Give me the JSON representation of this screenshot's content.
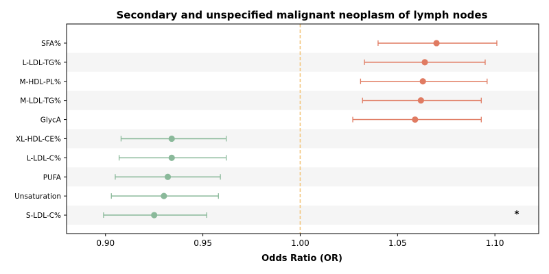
{
  "chart_data": {
    "type": "forest",
    "title": "Secondary and unspecified malignant neoplasm of lymph nodes",
    "xlabel": "Odds Ratio (OR)",
    "xlim": [
      0.88,
      1.1225
    ],
    "xticks": [
      0.9,
      0.95,
      1.0,
      1.05,
      1.1
    ],
    "xtick_labels": [
      "0.90",
      "0.95",
      "1.00",
      "1.05",
      "1.10"
    ],
    "reference_line": 1.0,
    "grid": false,
    "row_shading": "alternating",
    "colors": {
      "risk": "#e07b62",
      "protective": "#8ab99a",
      "reference": "#f2c57c",
      "shade": "#f5f5f5"
    },
    "rows": [
      {
        "label": "SFA%",
        "or": 1.07,
        "lower": 1.04,
        "upper": 1.101,
        "group": "risk",
        "annotation": ""
      },
      {
        "label": "L-LDL-TG%",
        "or": 1.064,
        "lower": 1.033,
        "upper": 1.095,
        "group": "risk",
        "annotation": ""
      },
      {
        "label": "M-HDL-PL%",
        "or": 1.063,
        "lower": 1.031,
        "upper": 1.096,
        "group": "risk",
        "annotation": ""
      },
      {
        "label": "M-LDL-TG%",
        "or": 1.062,
        "lower": 1.032,
        "upper": 1.093,
        "group": "risk",
        "annotation": ""
      },
      {
        "label": "GlycA",
        "or": 1.059,
        "lower": 1.027,
        "upper": 1.093,
        "group": "risk",
        "annotation": ""
      },
      {
        "label": "XL-HDL-CE%",
        "or": 0.934,
        "lower": 0.908,
        "upper": 0.962,
        "group": "protective",
        "annotation": ""
      },
      {
        "label": "L-LDL-C%",
        "or": 0.934,
        "lower": 0.907,
        "upper": 0.962,
        "group": "protective",
        "annotation": ""
      },
      {
        "label": "PUFA",
        "or": 0.932,
        "lower": 0.905,
        "upper": 0.959,
        "group": "protective",
        "annotation": ""
      },
      {
        "label": "Unsaturation",
        "or": 0.93,
        "lower": 0.903,
        "upper": 0.958,
        "group": "protective",
        "annotation": ""
      },
      {
        "label": "S-LDL-C%",
        "or": 0.925,
        "lower": 0.899,
        "upper": 0.952,
        "group": "protective",
        "annotation": "*"
      }
    ]
  }
}
